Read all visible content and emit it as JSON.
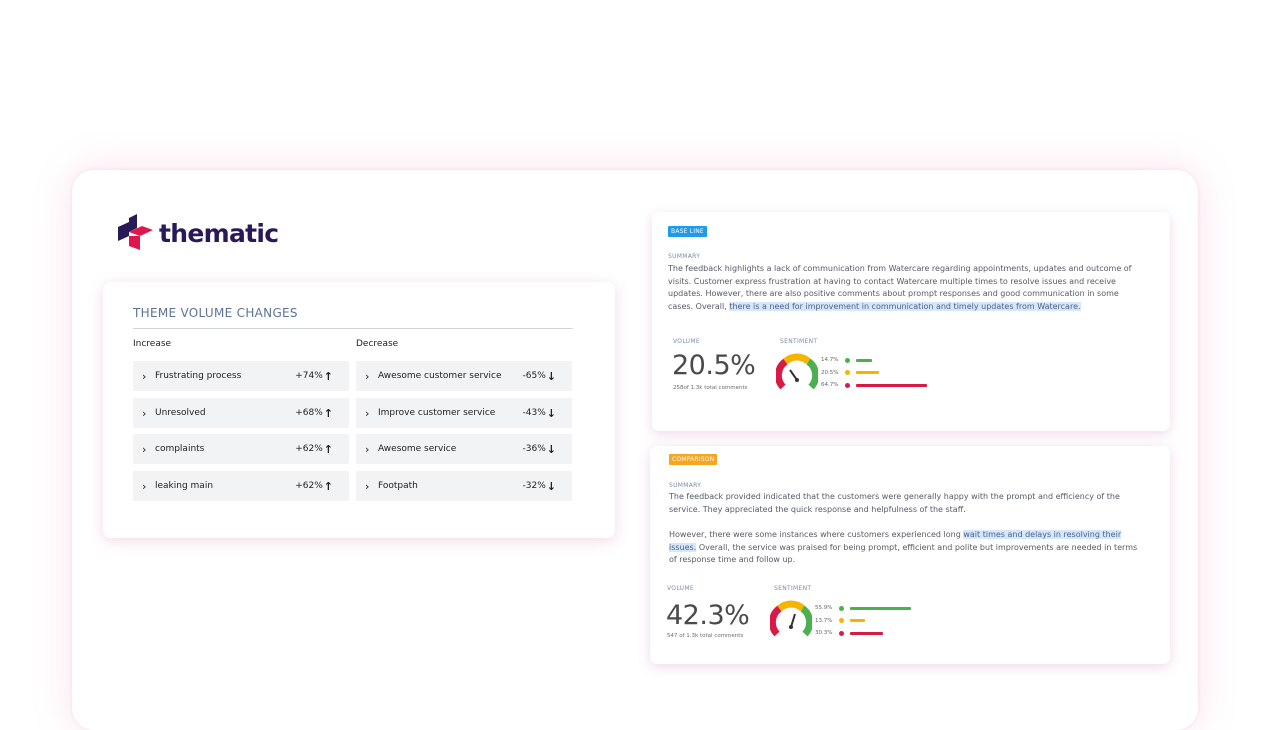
{
  "brand": {
    "name": "thematic"
  },
  "theme_changes": {
    "title": "THEME VOLUME CHANGES",
    "increase_label": "Increase",
    "decrease_label": "Decrease",
    "increase": [
      {
        "label": "Frustrating process",
        "change": "+74%"
      },
      {
        "label": "Unresolved",
        "change": "+68%"
      },
      {
        "label": "complaints",
        "change": "+62%"
      },
      {
        "label": "leaking main",
        "change": "+62%"
      }
    ],
    "decrease": [
      {
        "label": "Awesome customer service",
        "change": "-65%"
      },
      {
        "label": "Improve customer service",
        "change": "-43%"
      },
      {
        "label": "Awesome service",
        "change": "-36%"
      },
      {
        "label": "Footpath",
        "change": "-32%"
      }
    ]
  },
  "baseline": {
    "badge": "BASE LINE",
    "summary_label": "SUMMARY",
    "summary": "The feedback highlights a lack of communication from Watercare regarding appointments, updates and outcome of visits. Customer express frustration at having to contact Watercare multiple times to resolve issues and receive updates. However, there are also positive comments about prompt responses and good communication in some cases. Overall,",
    "summary_highlight": "there is a need for improvement in communication and timely updates from Watercare.",
    "volume_label": "VOLUME",
    "volume": "20.5%",
    "total": "258of 1.3k total comments",
    "sentiment_label": "SENTIMENT",
    "sentiment": [
      {
        "value": "14.7%",
        "fraction": 0.147,
        "color": "#4caf50"
      },
      {
        "value": "20.5%",
        "fraction": 0.205,
        "color": "#f4b400"
      },
      {
        "value": "64.7%",
        "fraction": 0.647,
        "color": "#d81b46"
      }
    ]
  },
  "comparison": {
    "badge": "COMPARISON",
    "summary_label": "SUMMARY",
    "summary_p1": "The feedback provided indicated that the customers were generally happy with the prompt and efficiency of the service. They appreciated the quick response and helpfulness of the staff.",
    "summary_p2_pre": "However, there were some instances where customers experienced long",
    "summary_p2_highlight": "wait times and delays in resolving their issues.",
    "summary_p2_post": "Overall, the service was praised for being prompt, efficient and polite but improvements are needed in terms of response time and follow up.",
    "volume_label": "VOLUME",
    "volume": "42.3%",
    "total": "547 of 1.3k total comments",
    "sentiment_label": "SENTIMENT",
    "sentiment": [
      {
        "value": "55.9%",
        "fraction": 0.559,
        "color": "#4caf50"
      },
      {
        "value": "13.7%",
        "fraction": 0.137,
        "color": "#f4b400"
      },
      {
        "value": "30.3%",
        "fraction": 0.303,
        "color": "#d81b46"
      }
    ]
  },
  "colors": {
    "baseline_badge": "#1f9bea",
    "comparison_badge": "#f5a623",
    "brand_dark": "#2a1959",
    "brand_red": "#e0154b"
  }
}
